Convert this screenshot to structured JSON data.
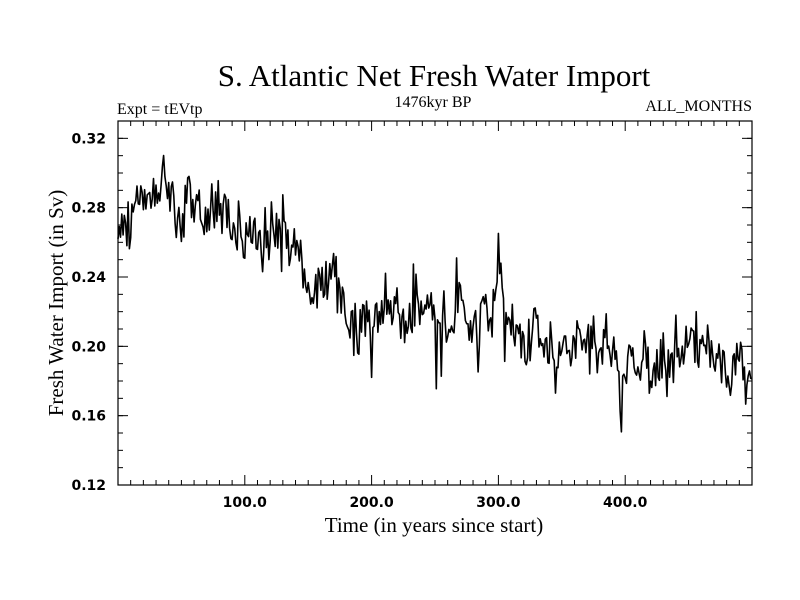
{
  "chart_data": {
    "type": "line",
    "title": "S. Atlantic Net Fresh Water Import",
    "subtitle_left": "Expt = tEVtp",
    "subtitle_center": "1476kyr BP",
    "subtitle_right": "ALL_MONTHS",
    "xlabel": "Time (in years since start)",
    "ylabel": "Fresh Water Import (in Sv)",
    "xlim": [
      0,
      500
    ],
    "ylim": [
      0.12,
      0.33
    ],
    "xticks": [
      100,
      200,
      300,
      400
    ],
    "xtick_labels": [
      "100.0",
      "200.0",
      "300.0",
      "400.0"
    ],
    "yticks": [
      0.12,
      0.16,
      0.2,
      0.24,
      0.28,
      0.32
    ],
    "ytick_labels": [
      "0.12",
      "0.16",
      "0.20",
      "0.24",
      "0.28",
      "0.32"
    ],
    "series": [
      {
        "name": "Net Fresh Water Import",
        "color": "#000000",
        "x": [
          0,
          5,
          10,
          15,
          20,
          25,
          30,
          35,
          40,
          45,
          50,
          55,
          60,
          65,
          70,
          75,
          80,
          85,
          90,
          95,
          100,
          105,
          110,
          115,
          120,
          125,
          130,
          135,
          140,
          145,
          150,
          155,
          160,
          165,
          170,
          175,
          180,
          185,
          190,
          195,
          200,
          205,
          210,
          215,
          220,
          225,
          230,
          235,
          240,
          245,
          250,
          255,
          260,
          265,
          270,
          275,
          280,
          285,
          290,
          295,
          300,
          305,
          310,
          315,
          320,
          325,
          330,
          335,
          340,
          345,
          350,
          355,
          360,
          365,
          370,
          375,
          380,
          385,
          390,
          395,
          400,
          405,
          410,
          415,
          420,
          425,
          430,
          435,
          440,
          445,
          450,
          455,
          460,
          465,
          470,
          475,
          480,
          485,
          490,
          495,
          500
        ],
        "values": [
          0.262,
          0.275,
          0.268,
          0.29,
          0.282,
          0.296,
          0.279,
          0.305,
          0.288,
          0.284,
          0.272,
          0.291,
          0.276,
          0.282,
          0.265,
          0.287,
          0.27,
          0.276,
          0.261,
          0.271,
          0.258,
          0.272,
          0.265,
          0.252,
          0.268,
          0.262,
          0.283,
          0.258,
          0.266,
          0.248,
          0.238,
          0.228,
          0.245,
          0.232,
          0.252,
          0.226,
          0.218,
          0.212,
          0.206,
          0.217,
          0.22,
          0.212,
          0.228,
          0.215,
          0.225,
          0.21,
          0.221,
          0.229,
          0.213,
          0.224,
          0.219,
          0.222,
          0.205,
          0.218,
          0.228,
          0.212,
          0.22,
          0.207,
          0.226,
          0.213,
          0.238,
          0.224,
          0.212,
          0.203,
          0.207,
          0.198,
          0.212,
          0.194,
          0.198,
          0.185,
          0.204,
          0.191,
          0.199,
          0.214,
          0.197,
          0.209,
          0.195,
          0.208,
          0.192,
          0.2,
          0.188,
          0.196,
          0.182,
          0.193,
          0.178,
          0.185,
          0.195,
          0.182,
          0.205,
          0.193,
          0.197,
          0.211,
          0.196,
          0.203,
          0.187,
          0.194,
          0.182,
          0.188,
          0.196,
          0.181,
          0.19
        ]
      }
    ]
  }
}
